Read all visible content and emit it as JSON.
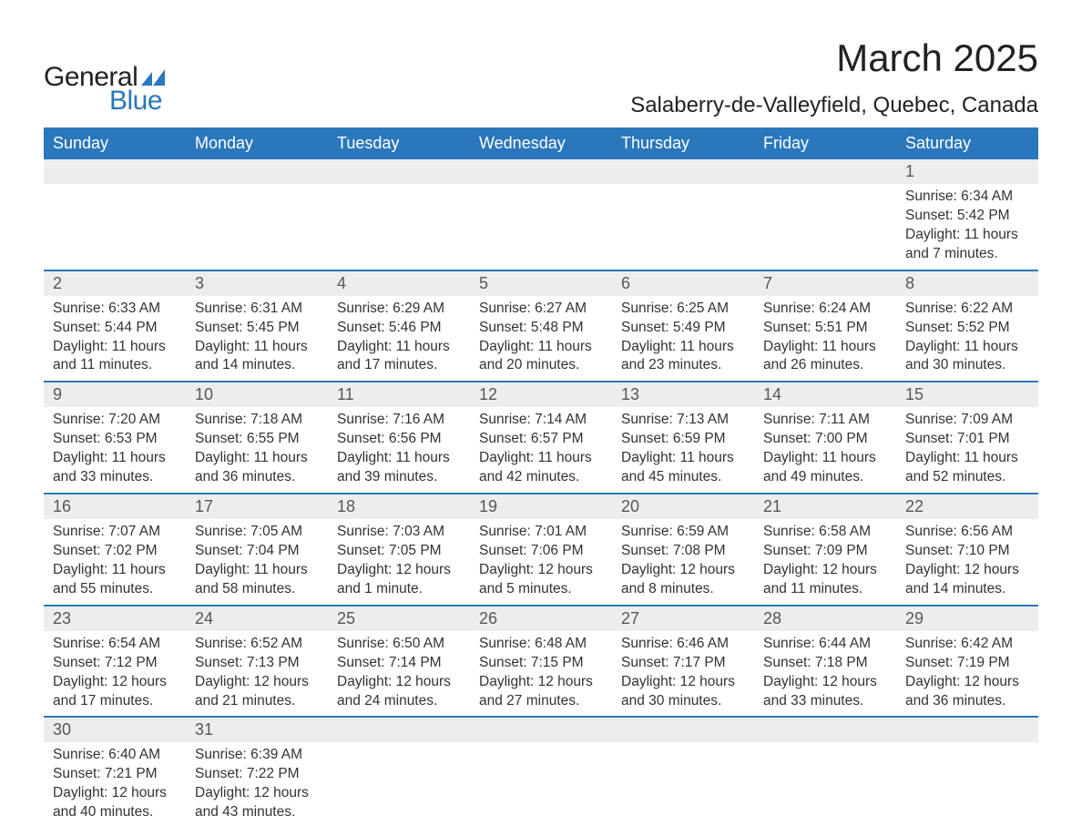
{
  "logo": {
    "word1": "General",
    "word2": "Blue",
    "word1_color": "#222222",
    "word2_color": "#2a77bb",
    "flag_color": "#2a77bb"
  },
  "header": {
    "month_title": "March 2025",
    "location": "Salaberry-de-Valleyfield, Quebec, Canada"
  },
  "styling": {
    "header_row_bg": "#2a77bb",
    "header_row_text": "#ffffff",
    "daynum_bg": "#eceeee",
    "daynum_text": "#565656",
    "divider_color": "#2a77bb",
    "body_text_color": "#333333",
    "page_bg": "#ffffff",
    "title_fontsize_pt": 32,
    "location_fontsize_pt": 18,
    "dayheader_fontsize_pt": 14,
    "daynum_fontsize_pt": 14,
    "detail_fontsize_pt": 12
  },
  "calendar": {
    "day_headers": [
      "Sunday",
      "Monday",
      "Tuesday",
      "Wednesday",
      "Thursday",
      "Friday",
      "Saturday"
    ],
    "labels": {
      "sunrise": "Sunrise:",
      "sunset": "Sunset:",
      "daylight": "Daylight:"
    },
    "weeks": [
      [
        null,
        null,
        null,
        null,
        null,
        null,
        {
          "day": "1",
          "sunrise": "6:34 AM",
          "sunset": "5:42 PM",
          "daylight": "11 hours and 7 minutes."
        }
      ],
      [
        {
          "day": "2",
          "sunrise": "6:33 AM",
          "sunset": "5:44 PM",
          "daylight": "11 hours and 11 minutes."
        },
        {
          "day": "3",
          "sunrise": "6:31 AM",
          "sunset": "5:45 PM",
          "daylight": "11 hours and 14 minutes."
        },
        {
          "day": "4",
          "sunrise": "6:29 AM",
          "sunset": "5:46 PM",
          "daylight": "11 hours and 17 minutes."
        },
        {
          "day": "5",
          "sunrise": "6:27 AM",
          "sunset": "5:48 PM",
          "daylight": "11 hours and 20 minutes."
        },
        {
          "day": "6",
          "sunrise": "6:25 AM",
          "sunset": "5:49 PM",
          "daylight": "11 hours and 23 minutes."
        },
        {
          "day": "7",
          "sunrise": "6:24 AM",
          "sunset": "5:51 PM",
          "daylight": "11 hours and 26 minutes."
        },
        {
          "day": "8",
          "sunrise": "6:22 AM",
          "sunset": "5:52 PM",
          "daylight": "11 hours and 30 minutes."
        }
      ],
      [
        {
          "day": "9",
          "sunrise": "7:20 AM",
          "sunset": "6:53 PM",
          "daylight": "11 hours and 33 minutes."
        },
        {
          "day": "10",
          "sunrise": "7:18 AM",
          "sunset": "6:55 PM",
          "daylight": "11 hours and 36 minutes."
        },
        {
          "day": "11",
          "sunrise": "7:16 AM",
          "sunset": "6:56 PM",
          "daylight": "11 hours and 39 minutes."
        },
        {
          "day": "12",
          "sunrise": "7:14 AM",
          "sunset": "6:57 PM",
          "daylight": "11 hours and 42 minutes."
        },
        {
          "day": "13",
          "sunrise": "7:13 AM",
          "sunset": "6:59 PM",
          "daylight": "11 hours and 45 minutes."
        },
        {
          "day": "14",
          "sunrise": "7:11 AM",
          "sunset": "7:00 PM",
          "daylight": "11 hours and 49 minutes."
        },
        {
          "day": "15",
          "sunrise": "7:09 AM",
          "sunset": "7:01 PM",
          "daylight": "11 hours and 52 minutes."
        }
      ],
      [
        {
          "day": "16",
          "sunrise": "7:07 AM",
          "sunset": "7:02 PM",
          "daylight": "11 hours and 55 minutes."
        },
        {
          "day": "17",
          "sunrise": "7:05 AM",
          "sunset": "7:04 PM",
          "daylight": "11 hours and 58 minutes."
        },
        {
          "day": "18",
          "sunrise": "7:03 AM",
          "sunset": "7:05 PM",
          "daylight": "12 hours and 1 minute."
        },
        {
          "day": "19",
          "sunrise": "7:01 AM",
          "sunset": "7:06 PM",
          "daylight": "12 hours and 5 minutes."
        },
        {
          "day": "20",
          "sunrise": "6:59 AM",
          "sunset": "7:08 PM",
          "daylight": "12 hours and 8 minutes."
        },
        {
          "day": "21",
          "sunrise": "6:58 AM",
          "sunset": "7:09 PM",
          "daylight": "12 hours and 11 minutes."
        },
        {
          "day": "22",
          "sunrise": "6:56 AM",
          "sunset": "7:10 PM",
          "daylight": "12 hours and 14 minutes."
        }
      ],
      [
        {
          "day": "23",
          "sunrise": "6:54 AM",
          "sunset": "7:12 PM",
          "daylight": "12 hours and 17 minutes."
        },
        {
          "day": "24",
          "sunrise": "6:52 AM",
          "sunset": "7:13 PM",
          "daylight": "12 hours and 21 minutes."
        },
        {
          "day": "25",
          "sunrise": "6:50 AM",
          "sunset": "7:14 PM",
          "daylight": "12 hours and 24 minutes."
        },
        {
          "day": "26",
          "sunrise": "6:48 AM",
          "sunset": "7:15 PM",
          "daylight": "12 hours and 27 minutes."
        },
        {
          "day": "27",
          "sunrise": "6:46 AM",
          "sunset": "7:17 PM",
          "daylight": "12 hours and 30 minutes."
        },
        {
          "day": "28",
          "sunrise": "6:44 AM",
          "sunset": "7:18 PM",
          "daylight": "12 hours and 33 minutes."
        },
        {
          "day": "29",
          "sunrise": "6:42 AM",
          "sunset": "7:19 PM",
          "daylight": "12 hours and 36 minutes."
        }
      ],
      [
        {
          "day": "30",
          "sunrise": "6:40 AM",
          "sunset": "7:21 PM",
          "daylight": "12 hours and 40 minutes."
        },
        {
          "day": "31",
          "sunrise": "6:39 AM",
          "sunset": "7:22 PM",
          "daylight": "12 hours and 43 minutes."
        },
        null,
        null,
        null,
        null,
        null
      ]
    ]
  }
}
